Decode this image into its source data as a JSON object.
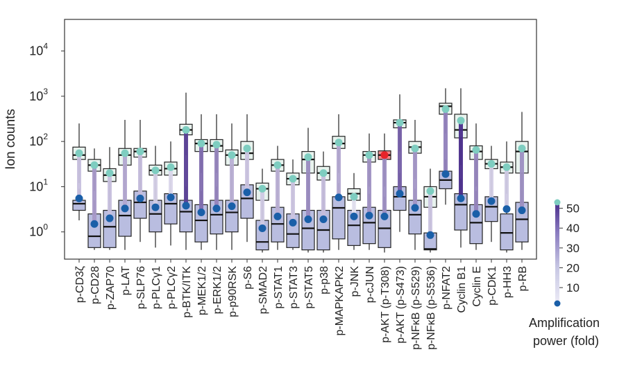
{
  "chart_data": {
    "type": "box",
    "ylabel": "Ion counts",
    "yscale": "log",
    "ylim": [
      0.25,
      50000
    ],
    "yticks": [
      {
        "value": 1,
        "base": "10",
        "exp": "0"
      },
      {
        "value": 10,
        "base": "10",
        "exp": "1"
      },
      {
        "value": 100,
        "base": "10",
        "exp": "2"
      },
      {
        "value": 1000,
        "base": "10",
        "exp": "3"
      },
      {
        "value": 10000,
        "base": "10",
        "exp": "4"
      }
    ],
    "categories": [
      "p-CD3ζ",
      "p-CD28",
      "p-ZAP70",
      "p-LAT",
      "p-SLP76",
      "p-PLCγ1",
      "p-PLCγ2",
      "p-BTK/ITK",
      "p-MEK1/2",
      "p-ERK1/2",
      "p-p90RSK",
      "p-S6",
      "p-SMAD2",
      "p-STAT1",
      "p-STAT3",
      "p-STAT5",
      "p-p38",
      "p-MAPKAPK2",
      "p-JNK",
      "p-cJUN",
      "p-AKT (p-T308)",
      "p-AKT (p-S473)",
      "p-NFκB (p-S529)",
      "p-NFκB (p-S536)",
      "p-NFAT2",
      "Cyclin B1",
      "Cyclin E",
      "p-CDK1",
      "p-HH3",
      "p-RB"
    ],
    "amplified": [
      {
        "q1": 40,
        "median": 50,
        "q3": 75,
        "whisker_low": 12,
        "whisker_high": 250
      },
      {
        "q1": 22,
        "median": 30,
        "q3": 40,
        "whisker_low": 8,
        "whisker_high": 70
      },
      {
        "q1": 13,
        "median": 18,
        "q3": 25,
        "whisker_low": 6,
        "whisker_high": 75
      },
      {
        "q1": 30,
        "median": 50,
        "q3": 70,
        "whisker_low": 10,
        "whisker_high": 300
      },
      {
        "q1": 45,
        "median": 60,
        "q3": 70,
        "whisker_low": 15,
        "whisker_high": 300
      },
      {
        "q1": 18,
        "median": 23,
        "q3": 30,
        "whisker_low": 6,
        "whisker_high": 80
      },
      {
        "q1": 18,
        "median": 25,
        "q3": 35,
        "whisker_low": 8,
        "whisker_high": 100
      },
      {
        "q1": 140,
        "median": 180,
        "q3": 240,
        "whisker_low": 50,
        "whisker_high": 1200
      },
      {
        "q1": 60,
        "median": 90,
        "q3": 110,
        "whisker_low": 20,
        "whisker_high": 400
      },
      {
        "q1": 60,
        "median": 80,
        "q3": 110,
        "whisker_low": 20,
        "whisker_high": 400
      },
      {
        "q1": 30,
        "median": 50,
        "q3": 65,
        "whisker_low": 10,
        "whisker_high": 250
      },
      {
        "q1": 40,
        "median": 55,
        "q3": 100,
        "whisker_low": 10,
        "whisker_high": 400
      },
      {
        "q1": 5,
        "median": 9,
        "q3": 12,
        "whisker_low": 2,
        "whisker_high": 25
      },
      {
        "q1": 22,
        "median": 30,
        "q3": 40,
        "whisker_low": 6,
        "whisker_high": 80
      },
      {
        "q1": 11,
        "median": 15,
        "q3": 20,
        "whisker_low": 4,
        "whisker_high": 40
      },
      {
        "q1": 20,
        "median": 40,
        "q3": 60,
        "whisker_low": 6,
        "whisker_high": 200
      },
      {
        "q1": 14,
        "median": 20,
        "q3": 28,
        "whisker_low": 5,
        "whisker_high": 60
      },
      {
        "q1": 70,
        "median": 90,
        "q3": 130,
        "whisker_low": 20,
        "whisker_high": 400
      },
      {
        "q1": 5,
        "median": 7,
        "q3": 9,
        "whisker_low": 2,
        "whisker_high": 20
      },
      {
        "q1": 35,
        "median": 50,
        "q3": 60,
        "whisker_low": 10,
        "whisker_high": 150
      },
      {
        "q1": 40,
        "median": 50,
        "q3": 62,
        "whisker_low": 10,
        "whisker_high": 150
      },
      {
        "q1": 200,
        "median": 260,
        "q3": 300,
        "whisker_low": 60,
        "whisker_high": 1100
      },
      {
        "q1": 55,
        "median": 75,
        "q3": 100,
        "whisker_low": 15,
        "whisker_high": 300
      },
      {
        "q1": 3.5,
        "median": 6,
        "q3": 10,
        "whisker_low": 1,
        "whisker_high": 25
      },
      {
        "q1": 400,
        "median": 600,
        "q3": 700,
        "whisker_low": 150,
        "whisker_high": 1500
      },
      {
        "q1": 120,
        "median": 180,
        "q3": 400,
        "whisker_low": 30,
        "whisker_high": 1500
      },
      {
        "q1": 40,
        "median": 60,
        "q3": 80,
        "whisker_low": 10,
        "whisker_high": 250
      },
      {
        "q1": 25,
        "median": 32,
        "q3": 40,
        "whisker_low": 8,
        "whisker_high": 80
      },
      {
        "q1": 20,
        "median": 27,
        "q3": 35,
        "whisker_low": 7,
        "whisker_high": 100
      },
      {
        "q1": 20,
        "median": 60,
        "q3": 100,
        "whisker_low": 5,
        "whisker_high": 450
      }
    ],
    "baseline": [
      {
        "q1": 3,
        "median": 4.2,
        "q3": 5,
        "whisker_low": 1.8,
        "whisker_high": 9
      },
      {
        "q1": 0.45,
        "median": 0.8,
        "q3": 2.5,
        "whisker_low": 0.4,
        "whisker_high": 5
      },
      {
        "q1": 0.45,
        "median": 1.3,
        "q3": 3,
        "whisker_low": 0.4,
        "whisker_high": 6
      },
      {
        "q1": 0.8,
        "median": 2.3,
        "q3": 5,
        "whisker_low": 0.4,
        "whisker_high": 10
      },
      {
        "q1": 2,
        "median": 4.5,
        "q3": 8,
        "whisker_low": 0.6,
        "whisker_high": 15
      },
      {
        "q1": 1,
        "median": 2.5,
        "q3": 5,
        "whisker_low": 0.45,
        "whisker_high": 9
      },
      {
        "q1": 1.5,
        "median": 4.2,
        "q3": 7,
        "whisker_low": 0.5,
        "whisker_high": 12
      },
      {
        "q1": 1,
        "median": 2.8,
        "q3": 5,
        "whisker_low": 0.4,
        "whisker_high": 10
      },
      {
        "q1": 0.6,
        "median": 1.8,
        "q3": 4,
        "whisker_low": 0.4,
        "whisker_high": 8
      },
      {
        "q1": 0.9,
        "median": 2.4,
        "q3": 5,
        "whisker_low": 0.4,
        "whisker_high": 10
      },
      {
        "q1": 1,
        "median": 2.7,
        "q3": 5,
        "whisker_low": 0.4,
        "whisker_high": 10
      },
      {
        "q1": 2,
        "median": 5.5,
        "q3": 11,
        "whisker_low": 0.6,
        "whisker_high": 25
      },
      {
        "q1": 0.4,
        "median": 0.6,
        "q3": 1.8,
        "whisker_low": 0.35,
        "whisker_high": 4
      },
      {
        "q1": 0.6,
        "median": 1.5,
        "q3": 3.5,
        "whisker_low": 0.4,
        "whisker_high": 7
      },
      {
        "q1": 0.45,
        "median": 0.9,
        "q3": 2.5,
        "whisker_low": 0.4,
        "whisker_high": 5
      },
      {
        "q1": 0.4,
        "median": 1.2,
        "q3": 3,
        "whisker_low": 0.35,
        "whisker_high": 6
      },
      {
        "q1": 0.4,
        "median": 1.1,
        "q3": 3,
        "whisker_low": 0.35,
        "whisker_high": 6
      },
      {
        "q1": 0.7,
        "median": 3.4,
        "q3": 6,
        "whisker_low": 0.4,
        "whisker_high": 12
      },
      {
        "q1": 0.5,
        "median": 1.4,
        "q3": 3,
        "whisker_low": 0.4,
        "whisker_high": 6
      },
      {
        "q1": 0.55,
        "median": 1.6,
        "q3": 3.5,
        "whisker_low": 0.4,
        "whisker_high": 7
      },
      {
        "q1": 0.45,
        "median": 1.2,
        "q3": 3,
        "whisker_low": 0.35,
        "whisker_high": 6
      },
      {
        "q1": 3,
        "median": 6,
        "q3": 10,
        "whisker_low": 1,
        "whisker_high": 20
      },
      {
        "q1": 0.9,
        "median": 2.4,
        "q3": 5,
        "whisker_low": 0.4,
        "whisker_high": 9
      },
      {
        "q1": 0.4,
        "median": 0.42,
        "q3": 0.95,
        "whisker_low": 0.35,
        "whisker_high": 2
      },
      {
        "q1": 9,
        "median": 14,
        "q3": 22,
        "whisker_low": 4,
        "whisker_high": 40
      },
      {
        "q1": 1.1,
        "median": 4,
        "q3": 7,
        "whisker_low": 0.45,
        "whisker_high": 15
      },
      {
        "q1": 0.55,
        "median": 1.6,
        "q3": 4,
        "whisker_low": 0.4,
        "whisker_high": 8
      },
      {
        "q1": 1.7,
        "median": 3.6,
        "q3": 6,
        "whisker_low": 0.6,
        "whisker_high": 10
      },
      {
        "q1": 0.4,
        "median": 0.95,
        "q3": 2.5,
        "whisker_low": 0.35,
        "whisker_high": 5
      },
      {
        "q1": 0.6,
        "median": 1.9,
        "q3": 4.5,
        "whisker_low": 0.4,
        "whisker_high": 8
      }
    ],
    "dot_high": [
      55,
      30,
      20,
      55,
      60,
      23,
      27,
      180,
      90,
      85,
      50,
      70,
      9,
      30,
      15,
      45,
      20,
      95,
      6,
      50,
      50,
      260,
      70,
      8,
      520,
      290,
      65,
      32,
      27,
      70
    ],
    "dot_low": [
      5.5,
      1.5,
      2,
      3.3,
      5.5,
      3.5,
      5.8,
      3.8,
      2.7,
      3.3,
      3.7,
      7.5,
      1.2,
      2.2,
      1.6,
      1.9,
      1.9,
      5.8,
      2.2,
      2.3,
      2.2,
      7,
      3.4,
      0.85,
      19,
      5.5,
      2.5,
      4.8,
      3.2,
      3
    ],
    "amplification": [
      10,
      20,
      10,
      16,
      11,
      7,
      5,
      47,
      33,
      26,
      14,
      9,
      8,
      14,
      9,
      24,
      11,
      16,
      3,
      22,
      23,
      37,
      21,
      9,
      27,
      53,
      26,
      7,
      8,
      23
    ],
    "highlight_color": "#e8242a",
    "highlight_index": 20,
    "colors": {
      "amplified_box_fill": "#e8f3ee",
      "baseline_box_fill": "#b9bde0",
      "dot_high": "#7ecdc0",
      "dot_low": "#1a5fa8",
      "scale_low": "#ecebf6",
      "scale_high": "#4a2d8b"
    },
    "colorbar": {
      "ticks": [
        10,
        20,
        30,
        40,
        50
      ],
      "tick_labels": [
        "10",
        "20",
        "30",
        "40",
        "50"
      ],
      "min": 2,
      "max": 53,
      "title_line1": "Amplification",
      "title_line2": "power (fold)"
    },
    "grid": false,
    "legend": "right"
  }
}
